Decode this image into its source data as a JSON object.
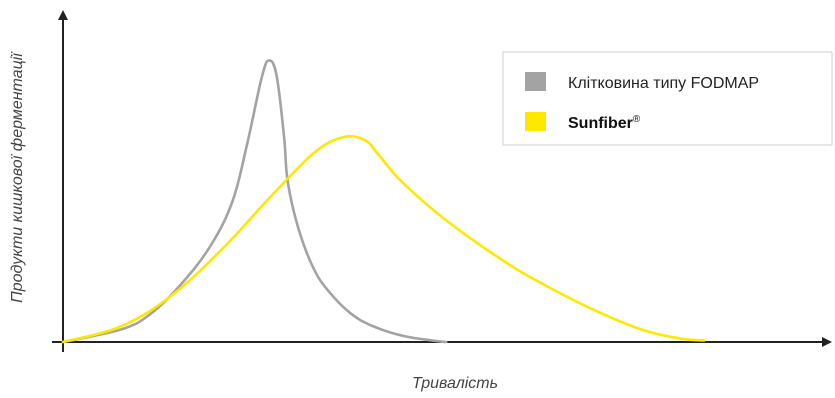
{
  "chart_data": {
    "type": "line",
    "xlabel": "Тривалість",
    "ylabel": "Продукти кишкової ферментації",
    "xlim": [
      0,
      10
    ],
    "ylim": [
      0,
      10
    ],
    "grid": false,
    "legend_position": "top-right",
    "series": [
      {
        "name": "Клітковина типу FODMAP",
        "color": "#a3a3a3",
        "x": [
          0,
          0.8,
          1.2,
          1.6,
          2.0,
          2.3,
          2.5,
          2.7,
          2.8,
          2.9,
          3.0,
          3.05,
          3.2,
          3.4,
          3.6,
          3.9,
          4.2,
          4.6,
          5.0,
          5.2
        ],
        "y": [
          0,
          0.4,
          0.9,
          1.8,
          3.0,
          4.4,
          6.2,
          8.3,
          8.8,
          8.3,
          6.4,
          5.0,
          3.5,
          2.3,
          1.6,
          0.9,
          0.5,
          0.2,
          0.05,
          0
        ]
      },
      {
        "name": "Sunfiber",
        "name_suffix": "®",
        "color": "#ffe800",
        "x": [
          0,
          0.8,
          1.5,
          2.2,
          2.8,
          3.4,
          3.8,
          4.1,
          4.3,
          4.6,
          5.2,
          6.0,
          6.6,
          7.3,
          7.9,
          8.4,
          8.7
        ],
        "y": [
          0,
          0.5,
          1.5,
          3.0,
          4.5,
          5.9,
          6.4,
          6.3,
          5.8,
          5.0,
          3.8,
          2.5,
          1.7,
          0.9,
          0.35,
          0.1,
          0.05
        ]
      }
    ]
  }
}
